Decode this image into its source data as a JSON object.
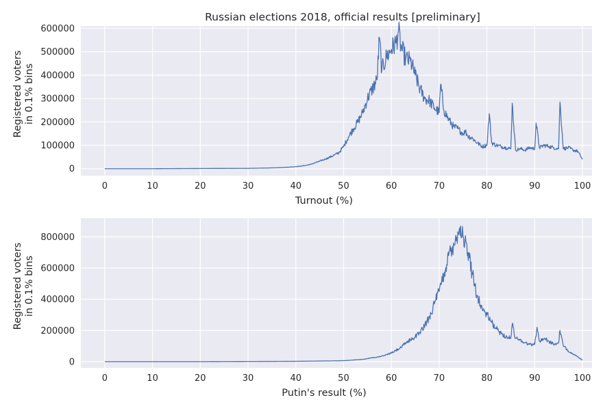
{
  "title": "Russian elections 2018, official results [preliminary]",
  "colors": {
    "background": "#eaeaf2",
    "grid": "#ffffff",
    "line": "#4c72b0",
    "text": "#262626"
  },
  "chart_data": [
    {
      "type": "line",
      "xlabel": "Turnout (%)",
      "ylabel": [
        "Registered voters",
        "in 0.1% bins"
      ],
      "xlim": [
        -5,
        102
      ],
      "ylim": [
        -30000,
        610000
      ],
      "xticks": [
        0,
        10,
        20,
        30,
        40,
        50,
        60,
        70,
        80,
        90,
        100
      ],
      "yticks": [
        0,
        100000,
        200000,
        300000,
        400000,
        500000,
        600000
      ],
      "xtick_labels": [
        "0",
        "10",
        "20",
        "30",
        "40",
        "50",
        "60",
        "70",
        "80",
        "90",
        "100"
      ],
      "ytick_labels": [
        "0",
        "100000",
        "200000",
        "300000",
        "400000",
        "500000",
        "600000"
      ],
      "grid": true,
      "series": [
        {
          "x": [
            0,
            10,
            20,
            30,
            34,
            36,
            38,
            40,
            41,
            42,
            43,
            44,
            45,
            46,
            47,
            48,
            49,
            50,
            51,
            52,
            53,
            54,
            55,
            56,
            57,
            57.5,
            58,
            59,
            60,
            61,
            61.5,
            62,
            63,
            64,
            65,
            66,
            67,
            68,
            69,
            70,
            70.3,
            71,
            72,
            73,
            74,
            75,
            75.5,
            76,
            77,
            78,
            79,
            80,
            80.5,
            81,
            82,
            83,
            84,
            85,
            85.3,
            86,
            87,
            88,
            89,
            90,
            90.3,
            91,
            92,
            93,
            94,
            95,
            95.3,
            96,
            97,
            98,
            99,
            100
          ],
          "y": [
            0,
            0,
            1000,
            1500,
            3000,
            4000,
            6000,
            9000,
            11000,
            14000,
            18000,
            25000,
            32000,
            40000,
            48000,
            58000,
            68000,
            95000,
            135000,
            170000,
            200000,
            240000,
            300000,
            340000,
            380000,
            560000,
            420000,
            480000,
            510000,
            540000,
            590000,
            520000,
            470000,
            460000,
            400000,
            340000,
            300000,
            290000,
            260000,
            240000,
            360000,
            250000,
            210000,
            180000,
            170000,
            150000,
            160000,
            140000,
            130000,
            110000,
            95000,
            100000,
            235000,
            110000,
            100000,
            95000,
            90000,
            85000,
            280000,
            80000,
            85000,
            80000,
            90000,
            85000,
            195000,
            90000,
            100000,
            95000,
            90000,
            85000,
            285000,
            85000,
            90000,
            80000,
            75000,
            40000
          ]
        }
      ]
    },
    {
      "type": "line",
      "xlabel": "Putin's result (%)",
      "ylabel": [
        "Registered voters",
        "in 0.1% bins"
      ],
      "xlim": [
        -5,
        102
      ],
      "ylim": [
        -40000,
        920000
      ],
      "xticks": [
        0,
        10,
        20,
        30,
        40,
        50,
        60,
        70,
        80,
        90,
        100
      ],
      "yticks": [
        0,
        200000,
        400000,
        600000,
        800000
      ],
      "xtick_labels": [
        "0",
        "10",
        "20",
        "30",
        "40",
        "50",
        "60",
        "70",
        "80",
        "90",
        "100"
      ],
      "ytick_labels": [
        "0",
        "200000",
        "400000",
        "600000",
        "800000"
      ],
      "grid": true,
      "series": [
        {
          "x": [
            0,
            10,
            20,
            30,
            40,
            45,
            50,
            52,
            54,
            56,
            58,
            60,
            62,
            63,
            64,
            65,
            66,
            67,
            68,
            69,
            70,
            71,
            72,
            73,
            74,
            74.5,
            75,
            76,
            77,
            78,
            79,
            80,
            81,
            82,
            83,
            84,
            85,
            85.3,
            86,
            87,
            88,
            89,
            90,
            90.5,
            91,
            92,
            93,
            94,
            95,
            95.3,
            96,
            97,
            98,
            99,
            100
          ],
          "y": [
            0,
            0,
            0,
            1000,
            2000,
            4000,
            6000,
            10000,
            15000,
            25000,
            35000,
            55000,
            90000,
            120000,
            140000,
            160000,
            190000,
            230000,
            290000,
            370000,
            450000,
            560000,
            680000,
            760000,
            820000,
            870000,
            800000,
            700000,
            560000,
            420000,
            340000,
            300000,
            250000,
            210000,
            180000,
            160000,
            150000,
            240000,
            150000,
            140000,
            120000,
            110000,
            110000,
            220000,
            130000,
            150000,
            130000,
            110000,
            120000,
            200000,
            100000,
            70000,
            50000,
            30000,
            10000
          ]
        }
      ]
    }
  ]
}
